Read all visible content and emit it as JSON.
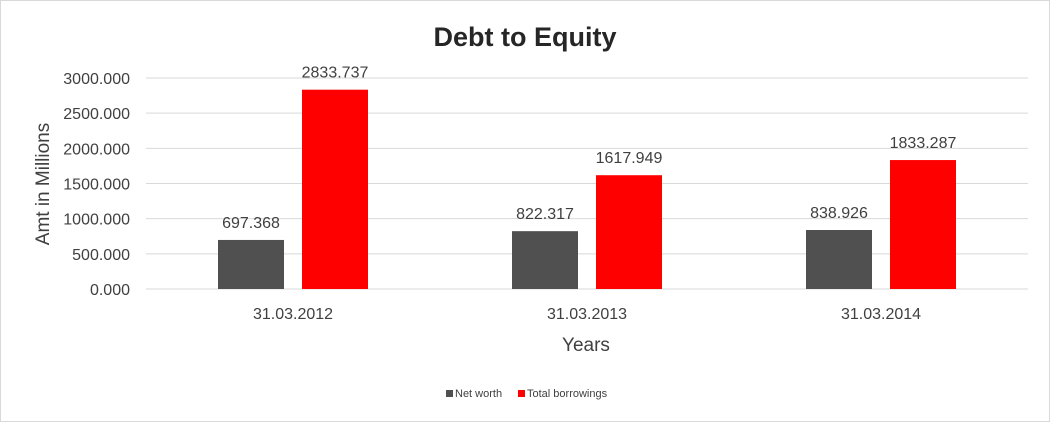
{
  "chart_data": {
    "type": "bar",
    "title": "Debt to Equity",
    "xlabel": "Years",
    "ylabel": "Amt in Millions",
    "categories": [
      "31.03.2012",
      "31.03.2013",
      "31.03.2014"
    ],
    "series": [
      {
        "name": "Net worth",
        "values": [
          697.368,
          822.317,
          838.926
        ],
        "color": "#505050",
        "labels": [
          "697.368",
          "822.317",
          "838.926"
        ]
      },
      {
        "name": "Total borrowings",
        "values": [
          2833.737,
          1617.949,
          1833.287
        ],
        "color": "#ff0000",
        "labels": [
          "2833.737",
          "1617.949",
          "1833.287"
        ]
      }
    ],
    "ylim": [
      0,
      3000
    ],
    "yticks": [
      0,
      500,
      1000,
      1500,
      2000,
      2500,
      3000
    ],
    "ytick_labels": [
      "0.000",
      "500.000",
      "1000.000",
      "1500.000",
      "2000.000",
      "2500.000",
      "3000.000"
    ],
    "grid": true,
    "legend_position": "bottom"
  }
}
